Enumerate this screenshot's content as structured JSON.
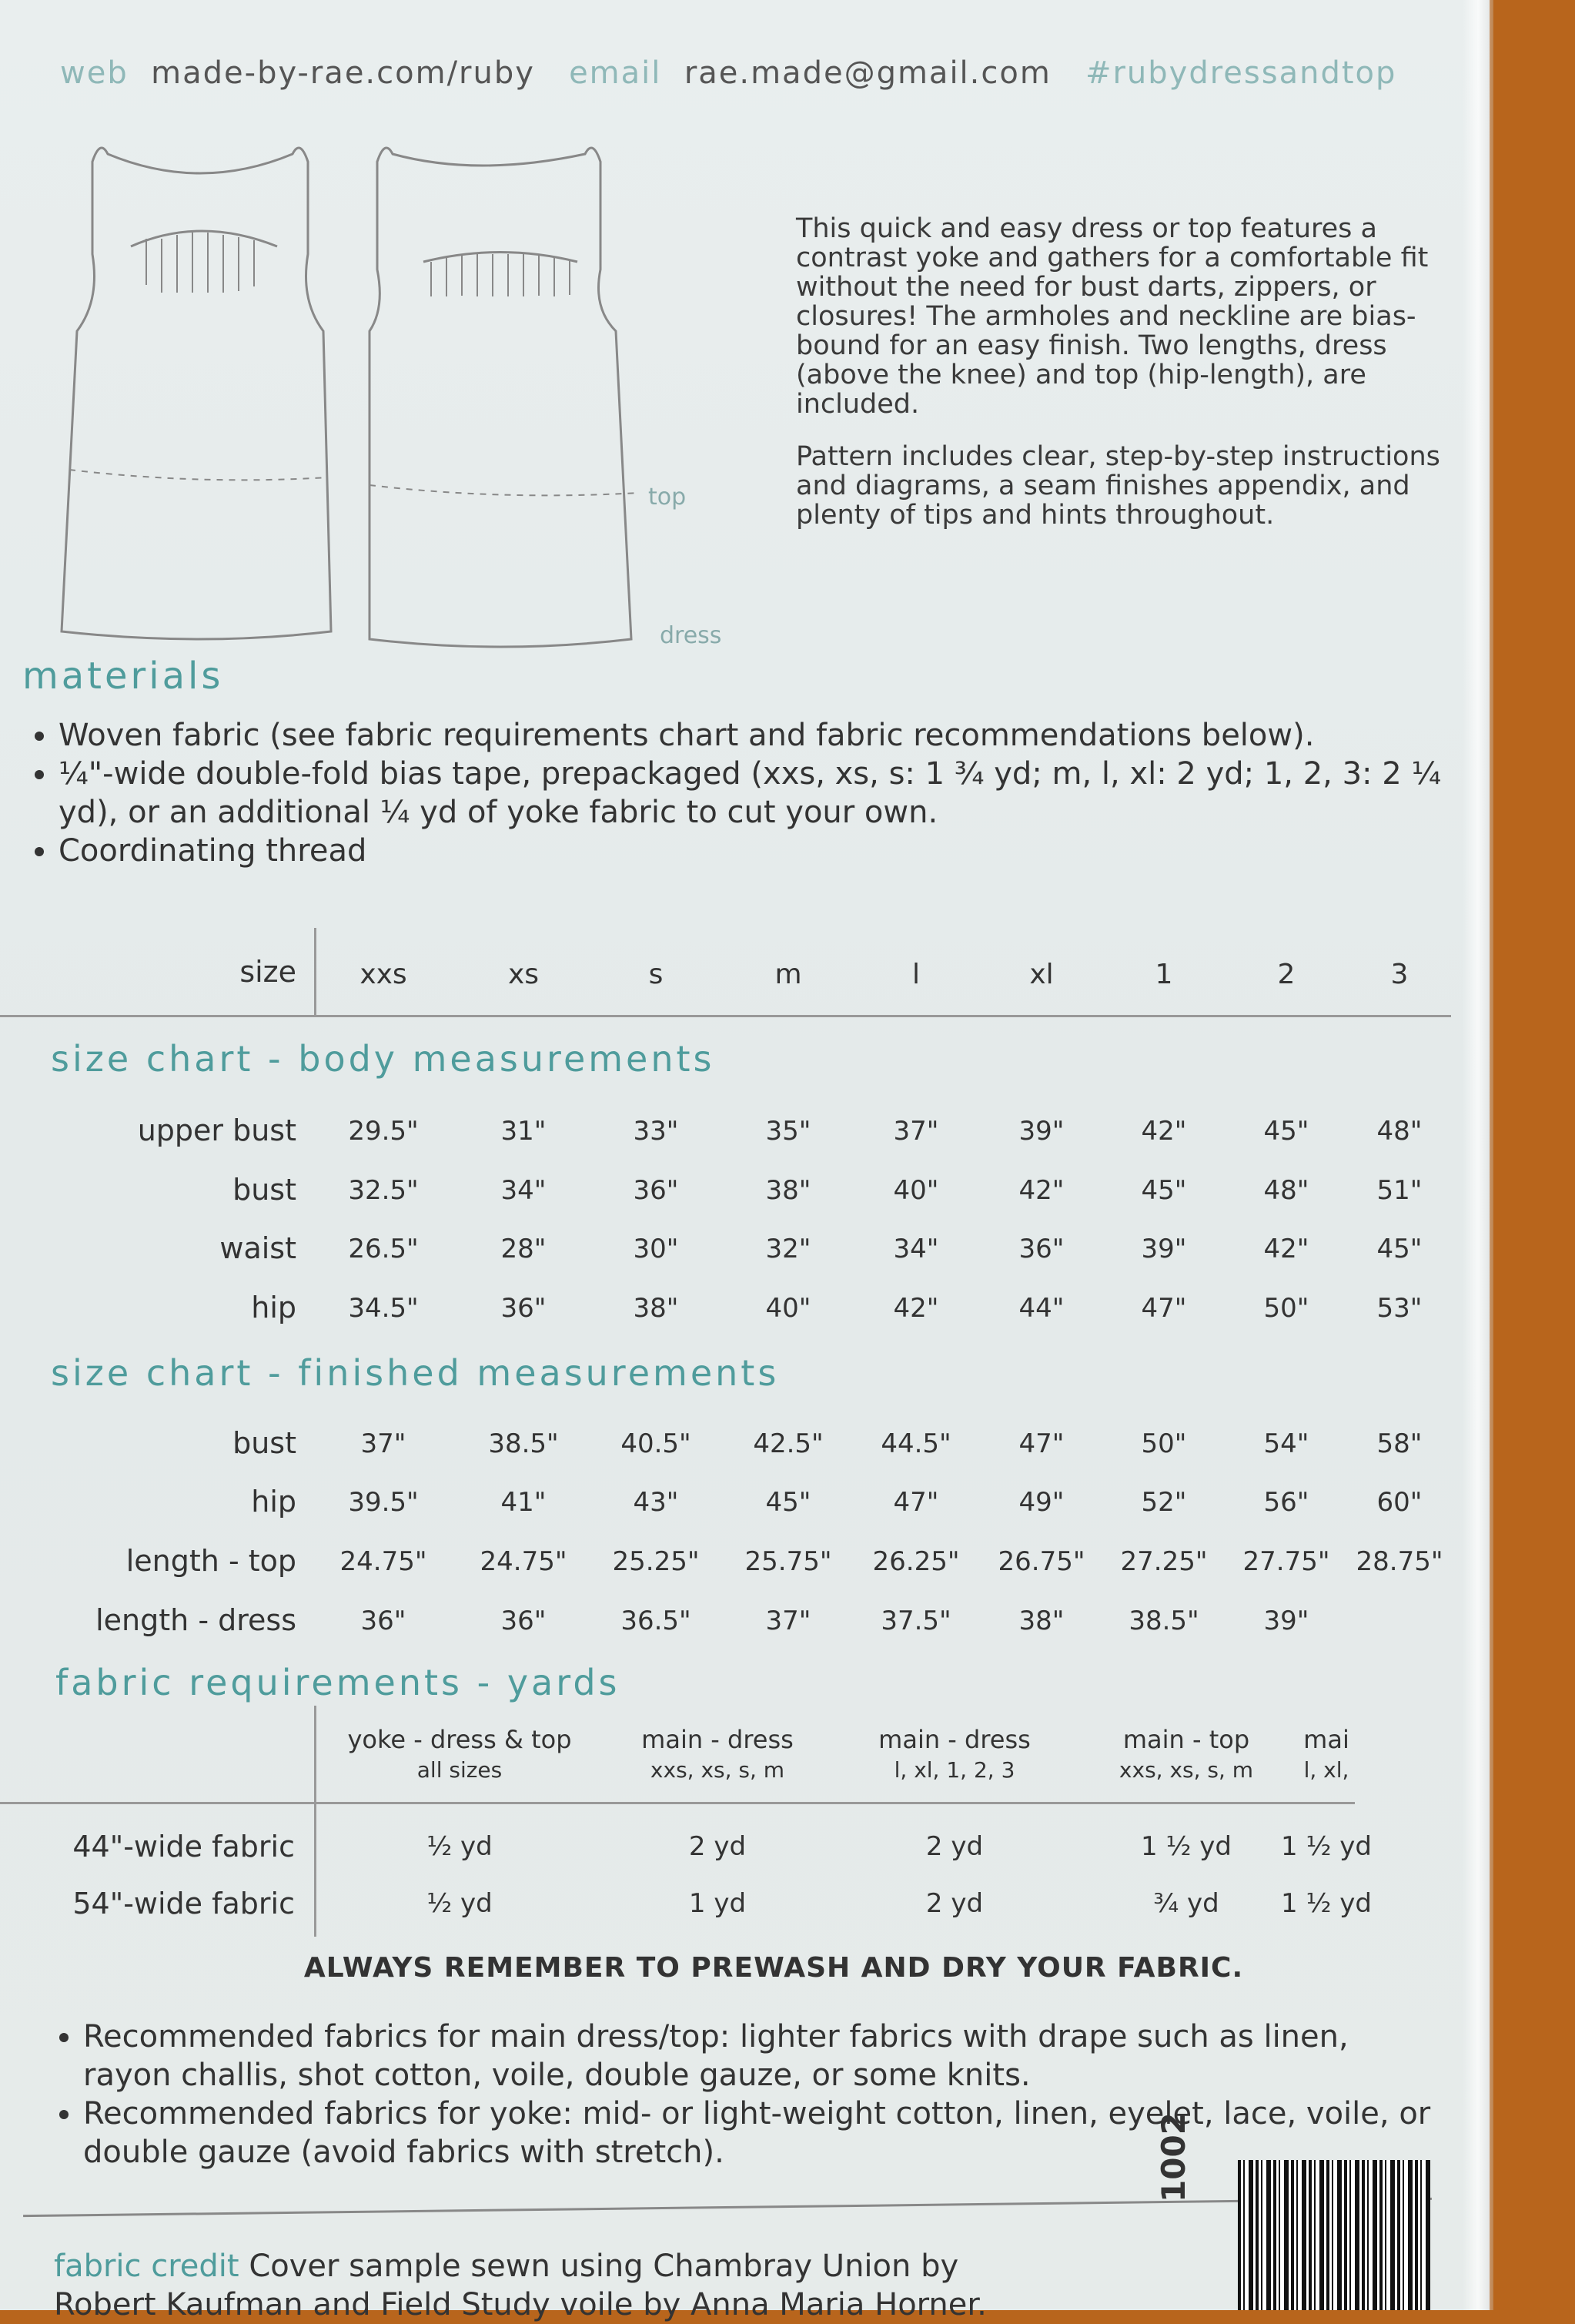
{
  "header": {
    "web_label": "web",
    "web": "made-by-rae.com/ruby",
    "email_label": "email",
    "email": "rae.made@gmail.com",
    "hashtag": "#rubydressandtop"
  },
  "illustration": {
    "top_label": "top",
    "dress_label": "dress"
  },
  "description": [
    "This quick and easy dress or top features a contrast yoke and gathers for a comfortable fit without the need for bust darts, zippers, or closures! The armholes and neckline are bias-bound for an easy finish. Two lengths, dress (above the knee) and top (hip-length), are included.",
    "Pattern includes clear, step-by-step instructions and diagrams, a seam finishes appendix, and plenty of tips and hints throughout."
  ],
  "materials": {
    "title": "materials",
    "items": [
      "Woven fabric (see fabric requirements chart and fabric recommendations below).",
      "¼\"-wide double-fold bias tape, prepackaged (xxs, xs, s: 1 ¾ yd; m, l, xl: 2 yd; 1, 2, 3: 2 ¼ yd), or an additional ¼ yd of yoke fabric to cut your own.",
      "Coordinating thread"
    ]
  },
  "sizes": {
    "label": "size",
    "values": [
      "xxs",
      "xs",
      "s",
      "m",
      "l",
      "xl",
      "1",
      "2",
      "3"
    ]
  },
  "body": {
    "title": "size chart - body measurements",
    "rows": [
      {
        "label": "upper bust",
        "values": [
          "29.5\"",
          "31\"",
          "33\"",
          "35\"",
          "37\"",
          "39\"",
          "42\"",
          "45\"",
          "48\""
        ]
      },
      {
        "label": "bust",
        "values": [
          "32.5\"",
          "34\"",
          "36\"",
          "38\"",
          "40\"",
          "42\"",
          "45\"",
          "48\"",
          "51\""
        ]
      },
      {
        "label": "waist",
        "values": [
          "26.5\"",
          "28\"",
          "30\"",
          "32\"",
          "34\"",
          "36\"",
          "39\"",
          "42\"",
          "45\""
        ]
      },
      {
        "label": "hip",
        "values": [
          "34.5\"",
          "36\"",
          "38\"",
          "40\"",
          "42\"",
          "44\"",
          "47\"",
          "50\"",
          "53\""
        ]
      }
    ]
  },
  "finished": {
    "title": "size chart - finished measurements",
    "rows": [
      {
        "label": "bust",
        "values": [
          "37\"",
          "38.5\"",
          "40.5\"",
          "42.5\"",
          "44.5\"",
          "47\"",
          "50\"",
          "54\"",
          "58\""
        ]
      },
      {
        "label": "hip",
        "values": [
          "39.5\"",
          "41\"",
          "43\"",
          "45\"",
          "47\"",
          "49\"",
          "52\"",
          "56\"",
          "60\""
        ]
      },
      {
        "label": "length - top",
        "values": [
          "24.75\"",
          "24.75\"",
          "25.25\"",
          "25.75\"",
          "26.25\"",
          "26.75\"",
          "27.25\"",
          "27.75\"",
          "28.75\""
        ]
      },
      {
        "label": "length - dress",
        "values": [
          "36\"",
          "36\"",
          "36.5\"",
          "37\"",
          "37.5\"",
          "38\"",
          "38.5\"",
          "39\"",
          ""
        ]
      }
    ]
  },
  "fabric": {
    "title": "fabric requirements - yards",
    "columns": [
      {
        "line1": "yoke - dress & top",
        "line2": "all sizes"
      },
      {
        "line1": "main - dress",
        "line2": "xxs, xs, s, m"
      },
      {
        "line1": "main - dress",
        "line2": "l, xl, 1, 2, 3"
      },
      {
        "line1": "main - top",
        "line2": "xxs, xs, s, m"
      },
      {
        "line1": "mai",
        "line2": "l, xl,"
      }
    ],
    "rows": [
      {
        "label": "44\"-wide fabric",
        "values": [
          "½ yd",
          "2 yd",
          "2 yd",
          "1 ½ yd",
          "1 ½ yd"
        ]
      },
      {
        "label": "54\"-wide fabric",
        "values": [
          "½ yd",
          "1 yd",
          "2 yd",
          "¾ yd",
          "1 ½ yd"
        ]
      }
    ]
  },
  "notice": "ALWAYS REMEMBER TO PREWASH AND DRY YOUR FABRIC.",
  "recommendations": [
    "Recommended fabrics for main dress/top: lighter fabrics with drape such as linen, rayon challis, shot cotton, voile, double gauze, or some knits.",
    "Recommended fabrics for yoke: mid- or light-weight cotton, linen, eyelet, lace, voile, or double gauze (avoid fabrics with stretch)."
  ],
  "credit": {
    "label": "fabric credit",
    "text": "Cover sample sewn using Chambray Union by",
    "text2": "Robert Kaufman and Field Study voile by Anna Maria Horner."
  },
  "product_code": "1002",
  "colors": {
    "accent": "#4f9c9c",
    "background": "#b8651c",
    "paper": "#e8eded"
  }
}
